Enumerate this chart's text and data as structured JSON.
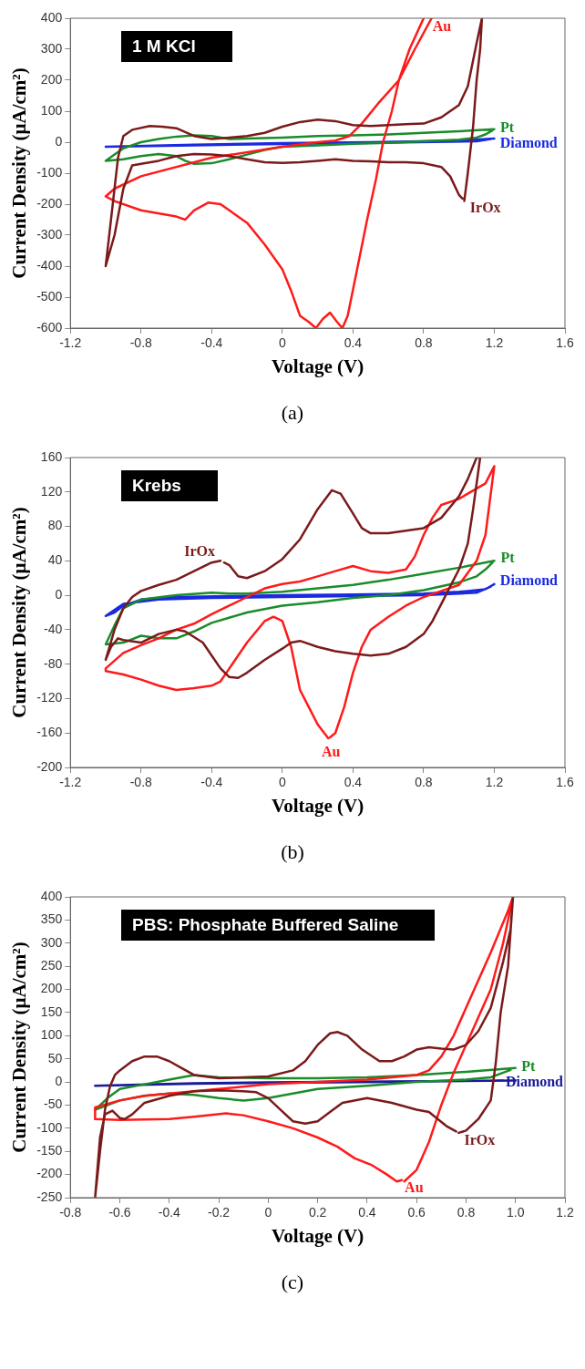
{
  "chart_data": [
    {
      "type": "line",
      "xlabel": "Voltage (V)",
      "ylabel": "Current Density (μA/cm²)",
      "xlim": [
        -1.2,
        1.6
      ],
      "xticks": [
        -1.2,
        -0.8,
        -0.4,
        0,
        0.4,
        0.8,
        1.2,
        1.6
      ],
      "ylim": [
        -600,
        400
      ],
      "yticks": [
        -600,
        -500,
        -400,
        -300,
        -200,
        -100,
        0,
        100,
        200,
        300,
        400
      ],
      "series": [
        {
          "name": "IrOx",
          "color": "#7b1a1a",
          "x": [
            1.02,
            1.0,
            0.95,
            0.9,
            0.8,
            0.7,
            0.6,
            0.5,
            0.4,
            0.3,
            0.2,
            0.1,
            0,
            -0.1,
            -0.2,
            -0.3,
            -0.4,
            -0.5,
            -0.6,
            -0.7,
            -0.8,
            -0.85,
            -0.9,
            -0.95,
            -1.0,
            -0.97,
            -0.93,
            -0.9,
            -0.85,
            -0.75,
            -0.68,
            -0.6,
            -0.5,
            -0.4,
            -0.3,
            -0.2,
            -0.1,
            0,
            0.1,
            0.2,
            0.3,
            0.4,
            0.5,
            0.6,
            0.7,
            0.8,
            0.9,
            1.0,
            1.05,
            1.1,
            1.13,
            1.12,
            1.1,
            1.08,
            1.05,
            1.03
          ],
          "values": [
            -182,
            -170,
            -110,
            -80,
            -68,
            -65,
            -65,
            -62,
            -60,
            -55,
            -60,
            -65,
            -67,
            -65,
            -55,
            -45,
            -40,
            -38,
            -45,
            -60,
            -70,
            -75,
            -150,
            -300,
            -400,
            -250,
            -50,
            20,
            40,
            52,
            50,
            45,
            20,
            10,
            15,
            20,
            30,
            50,
            65,
            73,
            68,
            55,
            52,
            55,
            58,
            60,
            80,
            120,
            180,
            320,
            400,
            300,
            200,
            50,
            -100,
            -190
          ]
        },
        {
          "name": "Au",
          "color": "#ff1a1a",
          "x": [
            0.8,
            0.72,
            0.66,
            0.62,
            0.57,
            0.53,
            0.48,
            0.42,
            0.37,
            0.34,
            0.31,
            0.27,
            0.23,
            0.19,
            0.15,
            0.1,
            0.05,
            0,
            -0.1,
            -0.2,
            -0.35,
            -0.42,
            -0.5,
            -0.55,
            -0.6,
            -0.8,
            -0.95,
            -1.0,
            -0.95,
            -0.8,
            -0.4,
            0,
            0.2,
            0.3,
            0.38,
            0.45,
            0.55,
            0.66,
            0.75,
            0.845
          ],
          "values": [
            400,
            300,
            200,
            100,
            0,
            -120,
            -250,
            -420,
            -560,
            -600,
            -580,
            -550,
            -570,
            -600,
            -580,
            -560,
            -480,
            -410,
            -330,
            -260,
            -200,
            -195,
            -220,
            -250,
            -240,
            -220,
            -190,
            -175,
            -150,
            -110,
            -50,
            -15,
            0,
            5,
            20,
            60,
            130,
            200,
            300,
            400
          ]
        },
        {
          "name": "Pt",
          "color": "#1a8c2a",
          "x": [
            1.19,
            1.15,
            1.1,
            1.0,
            0.8,
            0.6,
            0.4,
            0.2,
            0,
            -0.1,
            -0.2,
            -0.3,
            -0.4,
            -0.5,
            -0.55,
            -0.6,
            -0.7,
            -0.8,
            -0.9,
            -1.0,
            -0.95,
            -0.9,
            -0.8,
            -0.7,
            -0.6,
            -0.5,
            -0.4,
            -0.3,
            -0.2,
            0,
            0.2,
            0.4,
            0.6,
            0.8,
            1.0,
            1.2
          ],
          "values": [
            38,
            25,
            15,
            8,
            3,
            -2,
            -5,
            -10,
            -15,
            -25,
            -40,
            -55,
            -68,
            -70,
            -60,
            -45,
            -38,
            -45,
            -55,
            -60,
            -40,
            -20,
            0,
            10,
            18,
            22,
            20,
            10,
            12,
            15,
            20,
            22,
            25,
            30,
            35,
            42
          ]
        },
        {
          "name": "Diamond",
          "color": "#1a2ae0",
          "x": [
            1.18,
            1.1,
            0.5,
            0,
            -0.5,
            -1.0,
            -0.5,
            0,
            0.5,
            1.0,
            1.2
          ],
          "values": [
            10,
            3,
            -2,
            -6,
            -10,
            -15,
            -8,
            -3,
            0,
            5,
            12
          ]
        }
      ],
      "annotations": [
        "1 M KCl",
        "(a)"
      ]
    },
    {
      "type": "line",
      "xlabel": "Voltage (V)",
      "ylabel": "Current Density (μA/cm²)",
      "xlim": [
        -1.2,
        1.6
      ],
      "xticks": [
        -1.2,
        -0.8,
        -0.4,
        0,
        0.4,
        0.8,
        1.2,
        1.6
      ],
      "ylim": [
        -200,
        160
      ],
      "yticks": [
        -200,
        -160,
        -120,
        -80,
        -40,
        0,
        40,
        80,
        120,
        160
      ],
      "series": [
        {
          "name": "IrOx",
          "color": "#7b1a1a",
          "x": [
            -0.33,
            -0.3,
            -0.25,
            -0.2,
            -0.1,
            0,
            0.1,
            0.2,
            0.28,
            0.33,
            0.4,
            0.45,
            0.5,
            0.6,
            0.7,
            0.8,
            0.9,
            1.0,
            1.05,
            1.1,
            1.12,
            1.08,
            1.05,
            1.0,
            0.95,
            0.9,
            0.85,
            0.8,
            0.7,
            0.6,
            0.5,
            0.4,
            0.3,
            0.2,
            0.1,
            0.05,
            0,
            -0.1,
            -0.2,
            -0.25,
            -0.3,
            -0.35,
            -0.4,
            -0.45,
            -0.55,
            -0.6,
            -0.7,
            -0.8,
            -0.9,
            -0.93,
            -0.97,
            -1.0,
            -0.95,
            -0.9,
            -0.85,
            -0.8,
            -0.7,
            -0.6,
            -0.5,
            -0.4,
            -0.35
          ],
          "values": [
            38,
            35,
            22,
            20,
            28,
            42,
            65,
            100,
            122,
            118,
            95,
            78,
            72,
            72,
            75,
            78,
            90,
            115,
            135,
            160,
            160,
            100,
            60,
            30,
            10,
            -10,
            -30,
            -45,
            -60,
            -68,
            -70,
            -68,
            -65,
            -60,
            -53,
            -55,
            -62,
            -75,
            -90,
            -96,
            -95,
            -85,
            -70,
            -55,
            -42,
            -40,
            -45,
            -55,
            -52,
            -50,
            -60,
            -75,
            -40,
            -15,
            -2,
            5,
            12,
            18,
            28,
            38,
            40
          ]
        },
        {
          "name": "Au",
          "color": "#ff1a1a",
          "x": [
            0.27,
            0.3,
            0.35,
            0.4,
            0.45,
            0.5,
            0.6,
            0.7,
            0.8,
            0.9,
            1.0,
            1.1,
            1.15,
            1.2,
            1.15,
            1.0,
            0.9,
            0.85,
            0.8,
            0.75,
            0.7,
            0.6,
            0.5,
            0.4,
            0.3,
            0.2,
            0.1,
            0,
            -0.1,
            -0.2,
            -0.3,
            -0.4,
            -0.5,
            -0.6,
            -0.7,
            -0.8,
            -0.9,
            -1.0,
            -1.0,
            -0.9,
            -0.8,
            -0.7,
            -0.6,
            -0.5,
            -0.4,
            -0.35,
            -0.3,
            -0.2,
            -0.1,
            -0.05,
            0,
            0.05,
            0.1,
            0.15,
            0.2,
            0.26
          ],
          "values": [
            -165,
            -160,
            -130,
            -90,
            -60,
            -40,
            -25,
            -12,
            -2,
            5,
            12,
            40,
            70,
            150,
            130,
            112,
            105,
            90,
            70,
            45,
            30,
            26,
            28,
            34,
            28,
            22,
            16,
            13,
            8,
            -2,
            -12,
            -22,
            -33,
            -40,
            -50,
            -58,
            -67,
            -85,
            -88,
            -92,
            -98,
            -105,
            -110,
            -108,
            -105,
            -100,
            -85,
            -55,
            -30,
            -25,
            -30,
            -60,
            -110,
            -130,
            -150,
            -166
          ]
        },
        {
          "name": "Pt",
          "color": "#1a8c2a",
          "x": [
            1.19,
            1.15,
            1.1,
            1.0,
            0.8,
            0.6,
            0.4,
            0.2,
            0,
            -0.2,
            -0.4,
            -0.5,
            -0.6,
            -0.7,
            -0.8,
            -0.9,
            -1.0,
            -0.95,
            -0.9,
            -0.8,
            -0.6,
            -0.4,
            -0.3,
            -0.2,
            0,
            0.2,
            0.4,
            0.6,
            0.8,
            1.0,
            1.2
          ],
          "values": [
            38,
            30,
            22,
            15,
            6,
            0,
            -3,
            -8,
            -12,
            -20,
            -32,
            -42,
            -50,
            -50,
            -47,
            -55,
            -57,
            -35,
            -15,
            -5,
            0,
            3,
            2,
            2,
            4,
            8,
            12,
            18,
            25,
            32,
            40
          ]
        },
        {
          "name": "Diamond",
          "color": "#1a2ae0",
          "x": [
            1.18,
            1.1,
            0.8,
            0.4,
            0,
            -0.4,
            -0.7,
            -0.9,
            -1.0,
            -0.95,
            -0.9,
            -0.8,
            -0.6,
            -0.3,
            0,
            0.4,
            0.8,
            1.0,
            1.15,
            1.2
          ],
          "values": [
            10,
            3,
            0,
            -1,
            -2,
            -3,
            -5,
            -10,
            -24,
            -20,
            -12,
            -5,
            -2,
            -1,
            0,
            1,
            2,
            4,
            7,
            13
          ]
        }
      ],
      "annotations": [
        "Krebs",
        "(b)"
      ]
    },
    {
      "type": "line",
      "xlabel": "Voltage (V)",
      "ylabel": "Current Density (μA/cm²)",
      "xlim": [
        -0.8,
        1.2
      ],
      "xticks": [
        -0.8,
        -0.6,
        -0.4,
        -0.2,
        0,
        0.2,
        0.4,
        0.6,
        0.8,
        {
          "value": 1,
          "label": "1.0"
        },
        1.2
      ],
      "ylim": [
        -250,
        400
      ],
      "yticks": [
        -250,
        -200,
        -150,
        -100,
        -50,
        0,
        50,
        100,
        150,
        200,
        250,
        300,
        350,
        400
      ],
      "series": [
        {
          "name": "IrOx",
          "color": "#7b1a1a",
          "x": [
            0.76,
            0.72,
            0.65,
            0.6,
            0.5,
            0.4,
            0.3,
            0.25,
            0.2,
            0.15,
            0.1,
            0.05,
            0,
            -0.05,
            -0.1,
            -0.2,
            -0.3,
            -0.4,
            -0.5,
            -0.55,
            -0.58,
            -0.6,
            -0.63,
            -0.66,
            -0.68,
            -0.7,
            -0.68,
            -0.66,
            -0.64,
            -0.62,
            -0.6,
            -0.55,
            -0.5,
            -0.45,
            -0.4,
            -0.35,
            -0.3,
            -0.2,
            -0.1,
            0,
            0.1,
            0.15,
            0.2,
            0.25,
            0.28,
            0.32,
            0.38,
            0.45,
            0.5,
            0.55,
            0.6,
            0.65,
            0.7,
            0.75,
            0.8,
            0.85,
            0.9,
            0.95,
            0.98,
            0.99,
            0.97,
            0.94,
            0.92,
            0.9,
            0.85,
            0.8,
            0.77
          ],
          "values": [
            -107,
            -95,
            -65,
            -60,
            -45,
            -35,
            -45,
            -65,
            -85,
            -90,
            -85,
            -60,
            -35,
            -22,
            -20,
            -18,
            -20,
            -30,
            -45,
            -70,
            -80,
            -78,
            -62,
            -70,
            -120,
            -250,
            -150,
            -60,
            -10,
            15,
            25,
            45,
            55,
            55,
            45,
            30,
            15,
            8,
            10,
            12,
            25,
            45,
            80,
            105,
            108,
            100,
            70,
            45,
            45,
            55,
            70,
            75,
            72,
            70,
            80,
            110,
            160,
            260,
            330,
            400,
            250,
            150,
            40,
            -40,
            -80,
            -105,
            -110
          ]
        },
        {
          "name": "Au",
          "color": "#ff1a1a",
          "x": [
            0.54,
            0.52,
            0.48,
            0.42,
            0.35,
            0.28,
            0.2,
            0.1,
            0,
            -0.1,
            -0.17,
            -0.3,
            -0.4,
            -0.6,
            -0.7,
            -0.7,
            -0.6,
            -0.5,
            -0.4,
            -0.2,
            0,
            0.2,
            0.4,
            0.6,
            0.65,
            0.7,
            0.75,
            0.8,
            0.9,
            0.97,
            0.99,
            0.95,
            0.9,
            0.8,
            0.75,
            0.7,
            0.65,
            0.6,
            0.55
          ],
          "values": [
            -212,
            -215,
            -200,
            -180,
            -165,
            -140,
            -120,
            -100,
            -85,
            -72,
            -68,
            -75,
            -80,
            -82,
            -80,
            -55,
            -40,
            -30,
            -25,
            -15,
            -5,
            0,
            5,
            15,
            25,
            55,
            100,
            160,
            280,
            370,
            400,
            300,
            200,
            80,
            20,
            -50,
            -130,
            -190,
            -215
          ]
        },
        {
          "name": "Pt",
          "color": "#1a8c2a",
          "x": [
            0.98,
            0.95,
            0.9,
            0.8,
            0.6,
            0.4,
            0.2,
            0.1,
            0,
            -0.1,
            -0.2,
            -0.3,
            -0.4,
            -0.5,
            -0.6,
            -0.7,
            -0.65,
            -0.6,
            -0.5,
            -0.4,
            -0.3,
            -0.2,
            0,
            0.2,
            0.4,
            0.6,
            0.8,
            1.0
          ],
          "values": [
            26,
            20,
            10,
            5,
            0,
            -8,
            -15,
            -25,
            -35,
            -40,
            -35,
            -28,
            -25,
            -30,
            -40,
            -60,
            -35,
            -15,
            -5,
            5,
            15,
            10,
            8,
            8,
            10,
            15,
            22,
            30
          ]
        },
        {
          "name": "Diamond",
          "color": "#1a1a9a",
          "x": [
            0.95,
            0.5,
            0,
            -0.3,
            -0.7,
            -0.3,
            0,
            0.5,
            1.0
          ],
          "values": [
            3,
            0,
            -2,
            -4,
            -8,
            -3,
            -1,
            1,
            3
          ]
        }
      ],
      "annotations": [
        "PBS: Phosphate Buffered Saline",
        "(c)"
      ]
    }
  ]
}
